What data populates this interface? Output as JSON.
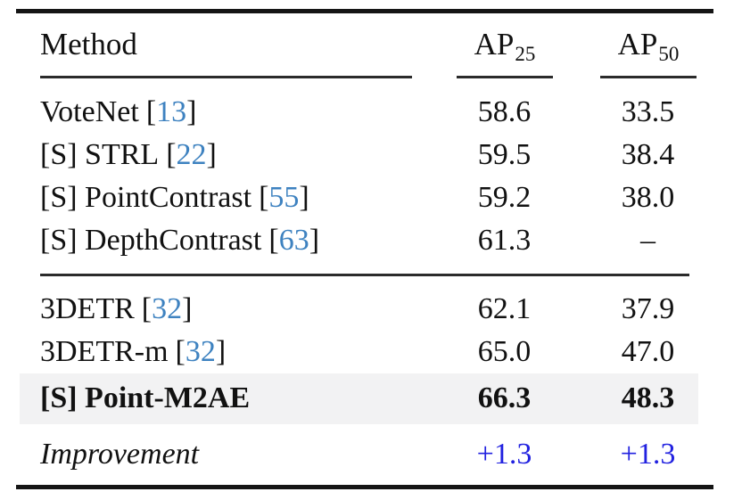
{
  "table": {
    "header": {
      "method": "Method",
      "ap25_base": "AP",
      "ap25_sub": "25",
      "ap50_base": "AP",
      "ap50_sub": "50"
    },
    "punct": {
      "open": "[",
      "close": "]"
    },
    "group1": [
      {
        "label": "VoteNet",
        "cite": "13",
        "ap25": "58.6",
        "ap50": "33.5"
      },
      {
        "label": "[S] STRL",
        "cite": "22",
        "ap25": "59.5",
        "ap50": "38.4"
      },
      {
        "label": "[S] PointContrast",
        "cite": "55",
        "ap25": "59.2",
        "ap50": "38.0"
      },
      {
        "label": "[S] DepthContrast",
        "cite": "63",
        "ap25": "61.3",
        "ap50": "–"
      }
    ],
    "group2": [
      {
        "label": "3DETR",
        "cite": "32",
        "ap25": "62.1",
        "ap50": "37.9"
      },
      {
        "label": "3DETR-m",
        "cite": "32",
        "ap25": "65.0",
        "ap50": "47.0"
      }
    ],
    "highlight_row": {
      "label": "[S] Point-M2AE",
      "ap25": "66.3",
      "ap50": "48.3"
    },
    "footer": {
      "label": "Improvement",
      "ap25": "+1.3",
      "ap50": "+1.3"
    }
  },
  "colors": {
    "citation_link": "#3e82c0",
    "improvement_value": "#2121e0",
    "highlight_background": "#f2f2f3",
    "rule": "#151515"
  }
}
